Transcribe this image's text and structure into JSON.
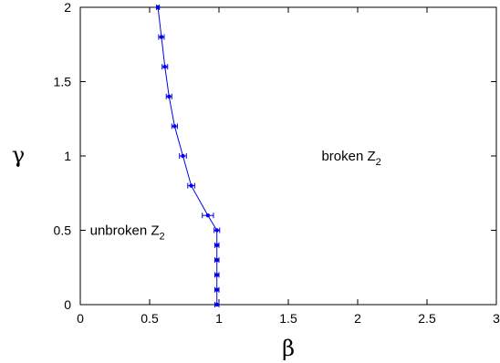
{
  "chart_data": {
    "type": "line",
    "xlabel": "β",
    "ylabel": "γ",
    "xlim": [
      0,
      3
    ],
    "ylim": [
      0,
      2
    ],
    "x_ticks": [
      "0",
      "0.5",
      "1",
      "1.5",
      "2",
      "2.5",
      "3"
    ],
    "y_ticks": [
      "0",
      "0.5",
      "1",
      "1.5",
      "2"
    ],
    "grid": false,
    "series_color": "#0000ee",
    "annotations": [
      {
        "text": "broken Z",
        "sub": "2",
        "x": 1.74,
        "y": 1.0
      },
      {
        "text": "unbroken Z",
        "sub": "2",
        "x": 0.07,
        "y": 0.5
      }
    ],
    "series": [
      {
        "points": [
          {
            "y": 0.0,
            "x": 0.985,
            "xerr": 0.015
          },
          {
            "y": 0.1,
            "x": 0.985,
            "xerr": 0.015
          },
          {
            "y": 0.2,
            "x": 0.985,
            "xerr": 0.015
          },
          {
            "y": 0.3,
            "x": 0.985,
            "xerr": 0.015
          },
          {
            "y": 0.4,
            "x": 0.985,
            "xerr": 0.015
          },
          {
            "y": 0.5,
            "x": 0.985,
            "xerr": 0.02
          },
          {
            "y": 0.6,
            "x": 0.92,
            "xerr": 0.04
          },
          {
            "y": 0.8,
            "x": 0.8,
            "xerr": 0.025
          },
          {
            "y": 1.0,
            "x": 0.74,
            "xerr": 0.025
          },
          {
            "y": 1.2,
            "x": 0.68,
            "xerr": 0.02
          },
          {
            "y": 1.4,
            "x": 0.64,
            "xerr": 0.02
          },
          {
            "y": 1.6,
            "x": 0.61,
            "xerr": 0.02
          },
          {
            "y": 1.8,
            "x": 0.585,
            "xerr": 0.02
          },
          {
            "y": 2.0,
            "x": 0.56,
            "xerr": 0.01
          }
        ]
      }
    ]
  }
}
